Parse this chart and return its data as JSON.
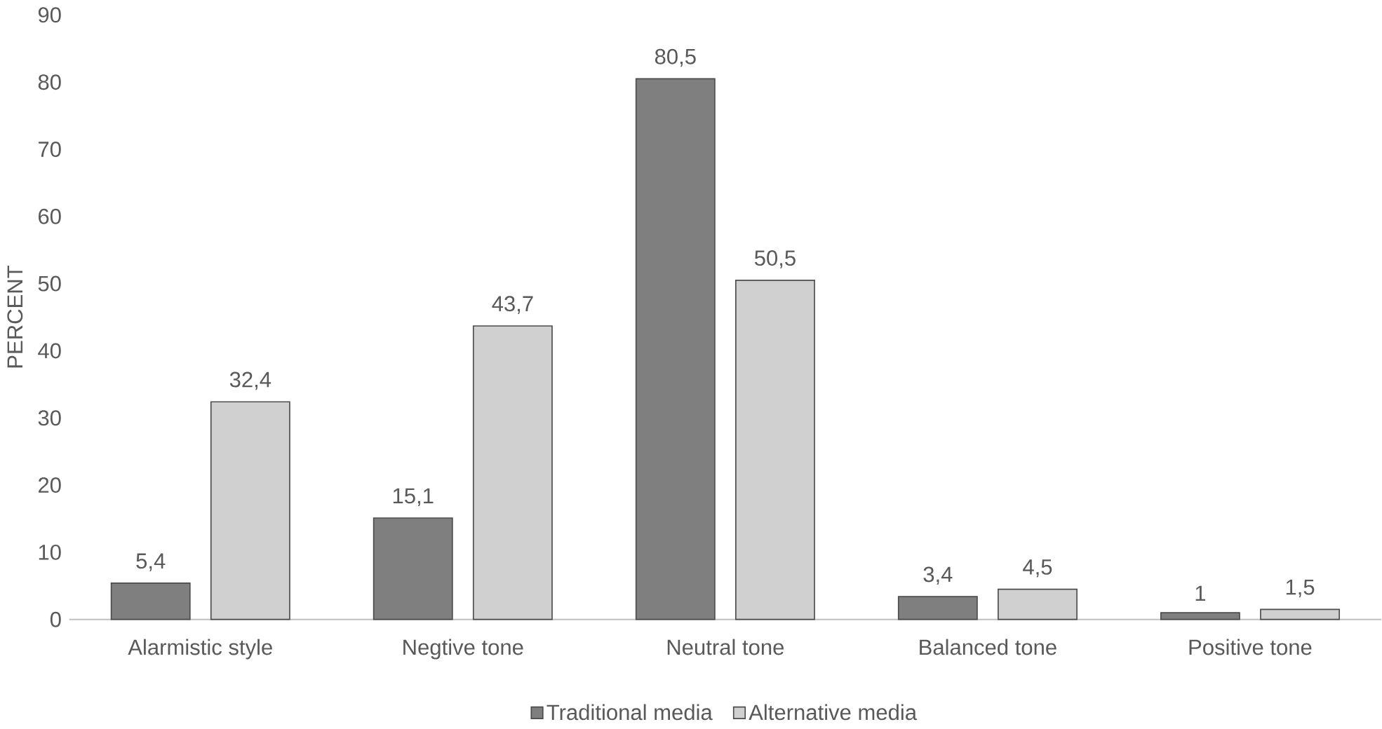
{
  "chart_data": {
    "type": "bar",
    "ylabel": "PERCENT",
    "categories": [
      "Alarmistic style",
      "Negtive tone",
      "Neutral tone",
      "Balanced tone",
      "Positive tone"
    ],
    "series": [
      {
        "name": "Traditional media",
        "color": "#7f7f7f",
        "values": [
          5.4,
          15.1,
          80.5,
          3.4,
          1
        ],
        "value_labels": [
          "5,4",
          "15,1",
          "80,5",
          "3,4",
          "1"
        ]
      },
      {
        "name": "Alternative media",
        "color": "#d0d0d0",
        "values": [
          32.4,
          43.7,
          50.5,
          4.5,
          1.5
        ],
        "value_labels": [
          "32,4",
          "43,7",
          "50,5",
          "4,5",
          "1,5"
        ]
      }
    ],
    "ylim": [
      0,
      90
    ],
    "yticks": [
      0,
      10,
      20,
      30,
      40,
      50,
      60,
      70,
      80,
      90
    ],
    "grid": false,
    "legend": "bottom"
  }
}
